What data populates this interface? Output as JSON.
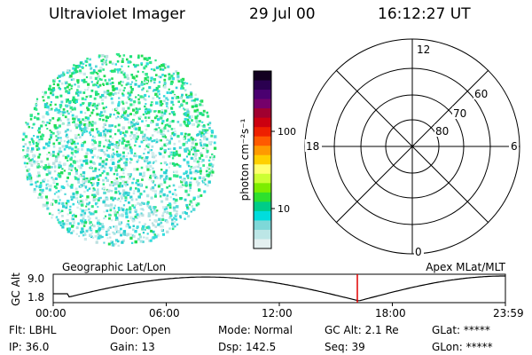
{
  "header": {
    "title": "Ultraviolet Imager",
    "date": "29 Jul 00",
    "time": "16:12:27 UT"
  },
  "colorbar": {
    "label": "photon cm⁻²s⁻¹",
    "tick_labels": [
      "100",
      "10"
    ]
  },
  "polar_plot": {
    "mlt_labels": [
      "12",
      "18",
      "6",
      "0"
    ],
    "mlat_labels": [
      "60",
      "70",
      "80"
    ]
  },
  "timeline": {
    "left_label": "Geographic Lat/Lon",
    "right_label": "Apex MLat/MLT",
    "y_title": "GC Alt",
    "y_ticks": [
      "9.0",
      "1.8"
    ],
    "x_ticks": [
      "00:00",
      "06:00",
      "12:00",
      "18:00",
      "23:59"
    ],
    "marker_color": "#e00000"
  },
  "info": {
    "filter": "Flt: LBHL",
    "door": "Door: Open",
    "mode": "Mode: Normal",
    "gc_alt": "GC Alt: 2.1 Re",
    "glat": "GLat: *****",
    "ip": "IP: 36.0",
    "gain": "Gain: 13",
    "dsp": "Dsp:  142.5",
    "seq": "Seq: 39",
    "glon": "GLon: *****"
  }
}
